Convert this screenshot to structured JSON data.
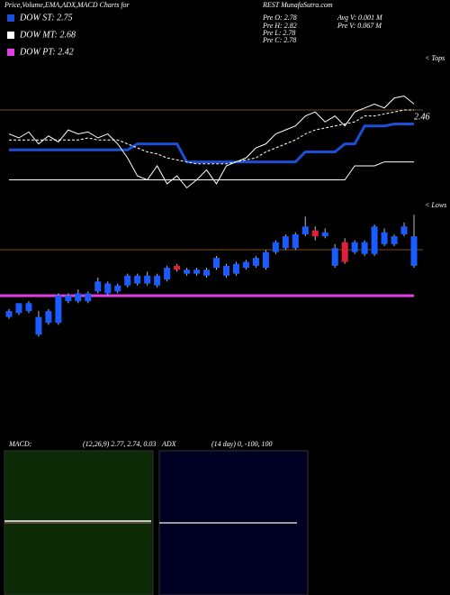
{
  "chart_data": {
    "type": "candlestick",
    "title": "Price,Volume,EMA,ADX,MACD Charts for",
    "subtitle": "REST MunafaSutra.com",
    "legend": [
      {
        "label": "DOW ST: 2.75",
        "color": "#1a4fd6"
      },
      {
        "label": "DOW MT: 2.68",
        "color": "#ffffff"
      },
      {
        "label": "DOW PT: 2.42",
        "color": "#e040e0"
      }
    ],
    "stats": [
      "Pre O: 2.78",
      "Pre H: 2.82",
      "Pre L: 2.78",
      "Pre C: 2.78",
      "Avg V: 0.001 M",
      "Pre V: 0.067 M"
    ],
    "tops_label": "< Tops",
    "lows_label": "< Lows",
    "upper": {
      "ylim": [
        2.11,
        2.81
      ],
      "annotation": "2.46",
      "series": [
        {
          "color": "#1a4fd6",
          "width": 3,
          "values": [
            2.33,
            2.33,
            2.33,
            2.33,
            2.33,
            2.33,
            2.33,
            2.33,
            2.33,
            2.33,
            2.33,
            2.33,
            2.33,
            2.36,
            2.36,
            2.36,
            2.36,
            2.36,
            2.27,
            2.27,
            2.27,
            2.27,
            2.27,
            2.27,
            2.27,
            2.27,
            2.27,
            2.27,
            2.27,
            2.27,
            2.32,
            2.32,
            2.32,
            2.32,
            2.36,
            2.36,
            2.45,
            2.45,
            2.45,
            2.46,
            2.46,
            2.46
          ]
        },
        {
          "color": "#ffffff",
          "width": 1,
          "values": [
            2.18,
            2.18,
            2.18,
            2.18,
            2.18,
            2.18,
            2.18,
            2.18,
            2.18,
            2.18,
            2.18,
            2.18,
            2.18,
            2.18,
            2.18,
            2.18,
            2.18,
            2.18,
            2.18,
            2.18,
            2.18,
            2.18,
            2.18,
            2.18,
            2.18,
            2.18,
            2.18,
            2.18,
            2.18,
            2.18,
            2.18,
            2.18,
            2.18,
            2.18,
            2.18,
            2.25,
            2.25,
            2.25,
            2.27,
            2.27,
            2.27,
            2.27
          ]
        },
        {
          "color": "#ffffff",
          "width": 1,
          "dashed": true,
          "values": [
            2.38,
            2.38,
            2.38,
            2.38,
            2.38,
            2.38,
            2.38,
            2.38,
            2.39,
            2.38,
            2.38,
            2.38,
            2.36,
            2.34,
            2.32,
            2.31,
            2.29,
            2.28,
            2.27,
            2.26,
            2.26,
            2.26,
            2.26,
            2.27,
            2.28,
            2.29,
            2.32,
            2.34,
            2.36,
            2.38,
            2.41,
            2.43,
            2.44,
            2.45,
            2.46,
            2.47,
            2.5,
            2.5,
            2.51,
            2.52,
            2.53,
            2.53
          ]
        },
        {
          "color": "#ffffff",
          "width": 1,
          "values": [
            2.41,
            2.39,
            2.42,
            2.36,
            2.4,
            2.37,
            2.43,
            2.41,
            2.42,
            2.39,
            2.41,
            2.36,
            2.29,
            2.2,
            2.18,
            2.25,
            2.16,
            2.2,
            2.14,
            2.18,
            2.23,
            2.16,
            2.25,
            2.27,
            2.29,
            2.34,
            2.36,
            2.41,
            2.43,
            2.45,
            2.5,
            2.52,
            2.47,
            2.5,
            2.45,
            2.52,
            2.54,
            2.56,
            2.54,
            2.59,
            2.6,
            2.56
          ]
        }
      ]
    },
    "candles": {
      "ylim": [
        2.18,
        2.89
      ],
      "up_color": "#1a5cff",
      "down_color": "#e0203a",
      "open": [
        2.31,
        2.33,
        2.34,
        2.22,
        2.28,
        2.28,
        2.39,
        2.39,
        2.39,
        2.44,
        2.43,
        2.44,
        2.47,
        2.48,
        2.48,
        2.47,
        2.5,
        2.57,
        2.53,
        2.53,
        2.52,
        2.56,
        2.52,
        2.53,
        2.56,
        2.57,
        2.56,
        2.64,
        2.66,
        2.66,
        2.73,
        2.75,
        2.72,
        2.57,
        2.69,
        2.64,
        2.63,
        2.63,
        2.68,
        2.68,
        2.73,
        2.57
      ],
      "high": [
        2.35,
        2.38,
        2.39,
        2.34,
        2.35,
        2.43,
        2.43,
        2.45,
        2.44,
        2.51,
        2.49,
        2.48,
        2.53,
        2.53,
        2.54,
        2.53,
        2.57,
        2.58,
        2.56,
        2.56,
        2.56,
        2.62,
        2.58,
        2.59,
        2.6,
        2.62,
        2.65,
        2.7,
        2.73,
        2.74,
        2.82,
        2.77,
        2.76,
        2.68,
        2.71,
        2.7,
        2.7,
        2.78,
        2.76,
        2.73,
        2.79,
        2.83
      ],
      "low": [
        2.3,
        2.32,
        2.33,
        2.21,
        2.27,
        2.27,
        2.38,
        2.38,
        2.38,
        2.43,
        2.42,
        2.43,
        2.46,
        2.47,
        2.47,
        2.46,
        2.49,
        2.54,
        2.52,
        2.52,
        2.51,
        2.55,
        2.51,
        2.52,
        2.55,
        2.56,
        2.55,
        2.63,
        2.65,
        2.65,
        2.72,
        2.7,
        2.71,
        2.56,
        2.58,
        2.63,
        2.62,
        2.62,
        2.67,
        2.67,
        2.72,
        2.56
      ],
      "close": [
        2.34,
        2.38,
        2.38,
        2.31,
        2.34,
        2.42,
        2.42,
        2.43,
        2.43,
        2.49,
        2.48,
        2.47,
        2.52,
        2.52,
        2.52,
        2.52,
        2.56,
        2.55,
        2.55,
        2.55,
        2.55,
        2.61,
        2.57,
        2.58,
        2.59,
        2.61,
        2.64,
        2.69,
        2.72,
        2.73,
        2.77,
        2.72,
        2.74,
        2.66,
        2.59,
        2.69,
        2.69,
        2.77,
        2.74,
        2.72,
        2.77,
        2.72
      ]
    },
    "macd": {
      "title": "MACD:",
      "params": "(12,26,9) 2.77, 2.74, 0.03"
    },
    "adx": {
      "title": "ADX",
      "params": "(14 day) 0, -100, 100"
    }
  }
}
